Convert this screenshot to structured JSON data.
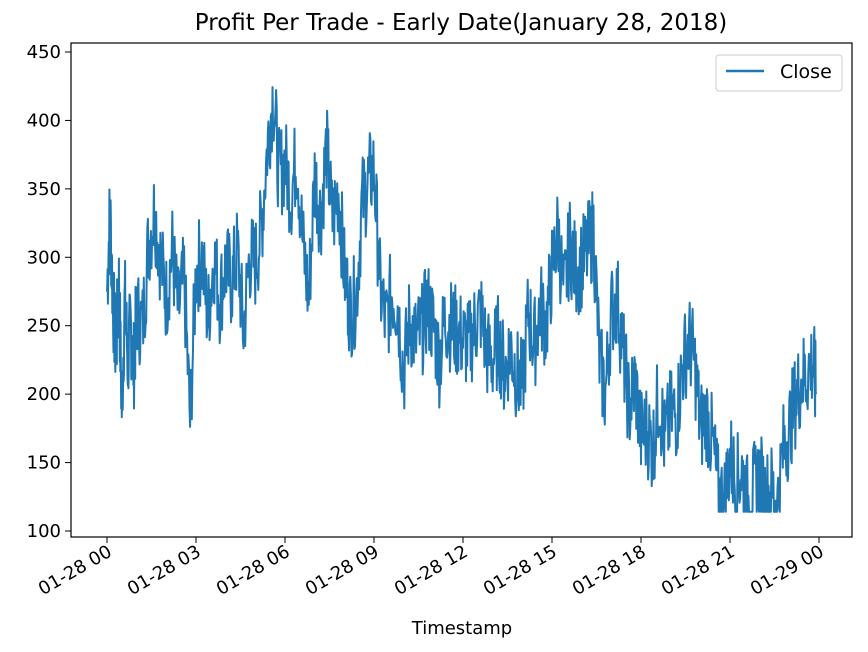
{
  "chart_data": {
    "type": "line",
    "title": "Profit Per Trade - Early Date(January 28, 2018)",
    "xlabel": "Timestamp",
    "ylabel": "",
    "x_ticks": [
      "01-28 00",
      "01-28 03",
      "01-28 06",
      "01-28 09",
      "01-28 12",
      "01-28 15",
      "01-28 18",
      "01-28 21",
      "01-29 00"
    ],
    "y_ticks": [
      100,
      150,
      200,
      250,
      300,
      350,
      400,
      450
    ],
    "xlim": [
      "01-28 00",
      "01-29 00"
    ],
    "ylim": [
      100,
      450
    ],
    "legend": {
      "position": "top-right",
      "entries": [
        "Close"
      ]
    },
    "grid": false,
    "colors": {
      "series": "#1f77b4",
      "axis": "#000000"
    },
    "series": [
      {
        "name": "Close",
        "x_hours": [
          0,
          0.1,
          0.2,
          0.3,
          0.4,
          0.5,
          0.6,
          0.7,
          0.8,
          0.9,
          1.0,
          1.2,
          1.4,
          1.6,
          1.8,
          2.0,
          2.2,
          2.4,
          2.6,
          2.8,
          3.0,
          3.2,
          3.4,
          3.6,
          3.8,
          4.0,
          4.2,
          4.4,
          4.6,
          4.8,
          5.0,
          5.2,
          5.4,
          5.6,
          5.8,
          6.0,
          6.2,
          6.4,
          6.6,
          6.8,
          7.0,
          7.2,
          7.4,
          7.6,
          7.8,
          8.0,
          8.2,
          8.4,
          8.6,
          8.8,
          9.0,
          9.2,
          9.4,
          9.6,
          9.8,
          10.0,
          10.2,
          10.4,
          10.6,
          10.8,
          11.0,
          11.2,
          11.4,
          11.6,
          11.8,
          12.0,
          12.2,
          12.4,
          12.6,
          12.8,
          13.0,
          13.2,
          13.4,
          13.6,
          13.8,
          14.0,
          14.2,
          14.4,
          14.6,
          14.8,
          15.0,
          15.2,
          15.4,
          15.6,
          15.8,
          16.0,
          16.2,
          16.4,
          16.6,
          16.8,
          17.0,
          17.2,
          17.4,
          17.6,
          17.8,
          18.0,
          18.2,
          18.4,
          18.6,
          18.8,
          19.0,
          19.2,
          19.4,
          19.6,
          19.8,
          20.0,
          20.2,
          20.4,
          20.6,
          20.8,
          21.0,
          21.2,
          21.4,
          21.6,
          21.8,
          22.0,
          22.2,
          22.4,
          22.6,
          22.8,
          23.0,
          23.2,
          23.4,
          23.6,
          23.8,
          23.9
        ],
        "values": [
          275,
          335,
          270,
          230,
          280,
          190,
          270,
          225,
          250,
          220,
          260,
          250,
          310,
          335,
          300,
          270,
          305,
          260,
          285,
          180,
          290,
          300,
          255,
          300,
          270,
          295,
          280,
          305,
          245,
          300,
          295,
          320,
          380,
          420,
          360,
          370,
          345,
          375,
          310,
          270,
          360,
          330,
          380,
          325,
          350,
          290,
          260,
          270,
          340,
          355,
          365,
          280,
          250,
          275,
          265,
          215,
          255,
          240,
          245,
          265,
          250,
          225,
          255,
          250,
          245,
          240,
          235,
          250,
          260,
          230,
          225,
          240,
          215,
          235,
          215,
          205,
          260,
          235,
          265,
          250,
          290,
          320,
          270,
          310,
          290,
          295,
          305,
          320,
          225,
          200,
          260,
          270,
          230,
          190,
          210,
          170,
          175,
          160,
          200,
          165,
          185,
          185,
          220,
          240,
          225,
          175,
          185,
          165,
          130,
          120,
          155,
          135,
          145,
          120,
          130,
          140,
          125,
          130,
          120,
          160,
          175,
          195,
          210,
          215,
          225,
          200
        ]
      }
    ]
  }
}
